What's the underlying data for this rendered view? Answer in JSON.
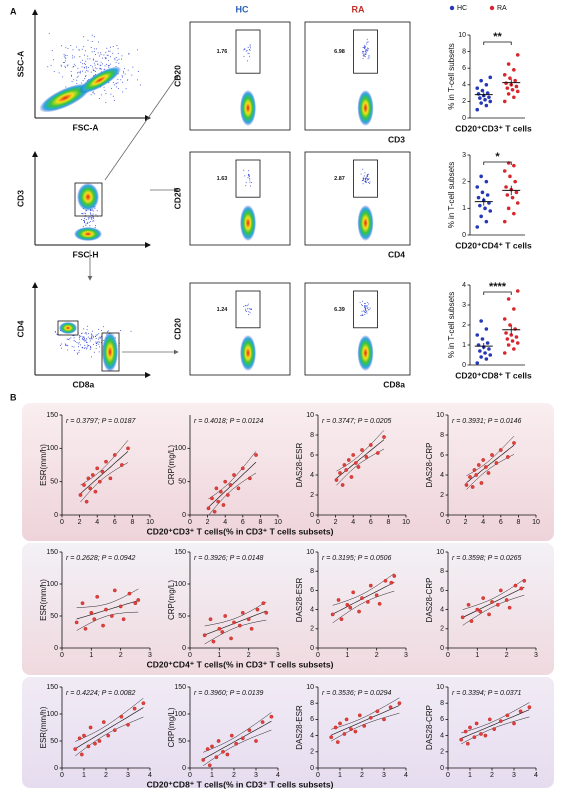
{
  "panel_a": "A",
  "panel_b": "B",
  "flow": {
    "hc": "HC",
    "ra": "RA",
    "gating": [
      {
        "x": "FSC-A",
        "y": "SSC-A"
      },
      {
        "x": "FSC-H",
        "y": "CD3"
      },
      {
        "x": "CD8a",
        "y": "CD4"
      }
    ],
    "rows": [
      {
        "y": "CD20",
        "x": "CD3",
        "hc": "1.76",
        "ra": "6.98"
      },
      {
        "y": "CD20",
        "x": "CD4",
        "hc": "1.63",
        "ra": "2.87"
      },
      {
        "y": "CD20",
        "x": "CD8a",
        "hc": "1.24",
        "ra": "6.39"
      }
    ]
  },
  "chart_data": [
    {
      "type": "dot",
      "ylabel": "% in T-cell subsets",
      "xlabel": "CD20⁺CD3⁺ T cells",
      "significance": "**",
      "ylim": [
        0,
        10
      ],
      "yticks": [
        0,
        2,
        4,
        6,
        8,
        10
      ],
      "series": [
        {
          "name": "HC",
          "color": "#2438b8",
          "values": [
            1.0,
            1.5,
            1.8,
            2.0,
            2.2,
            2.4,
            2.5,
            2.7,
            2.9,
            3.0,
            3.3,
            3.6,
            4.0,
            4.5,
            4.9
          ]
        },
        {
          "name": "RA",
          "color": "#d9262c",
          "values": [
            2.0,
            2.5,
            2.9,
            3.2,
            3.4,
            3.6,
            3.8,
            4.0,
            4.2,
            4.5,
            4.8,
            5.2,
            5.8,
            6.5,
            7.6
          ]
        }
      ]
    },
    {
      "type": "dot",
      "ylabel": "% in T-cell subsets",
      "xlabel": "CD20⁺CD4⁺ T cells",
      "significance": "*",
      "ylim": [
        0,
        3
      ],
      "yticks": [
        0,
        1,
        2,
        3
      ],
      "series": [
        {
          "name": "HC",
          "color": "#2438b8",
          "values": [
            0.3,
            0.5,
            0.7,
            0.9,
            1.0,
            1.1,
            1.2,
            1.3,
            1.4,
            1.5,
            1.6,
            1.8,
            2.0,
            2.2
          ]
        },
        {
          "name": "RA",
          "color": "#d9262c",
          "values": [
            0.5,
            0.8,
            1.0,
            1.2,
            1.4,
            1.5,
            1.6,
            1.7,
            1.8,
            2.0,
            2.2,
            2.4,
            2.6,
            2.7
          ]
        }
      ]
    },
    {
      "type": "dot",
      "ylabel": "% in T-cell subsets",
      "xlabel": "CD20⁺CD8⁺ T cells",
      "significance": "****",
      "ylim": [
        0,
        4
      ],
      "yticks": [
        0,
        1,
        2,
        3,
        4
      ],
      "series": [
        {
          "name": "HC",
          "color": "#2438b8",
          "values": [
            0.1,
            0.3,
            0.4,
            0.5,
            0.6,
            0.7,
            0.8,
            0.9,
            1.0,
            1.1,
            1.3,
            1.5,
            1.8,
            2.2
          ]
        },
        {
          "name": "RA",
          "color": "#d9262c",
          "values": [
            0.6,
            0.8,
            1.0,
            1.1,
            1.2,
            1.3,
            1.4,
            1.5,
            1.6,
            1.8,
            2.0,
            2.3,
            2.8,
            3.3,
            3.7
          ]
        }
      ]
    },
    {
      "type": "scatter",
      "xlabel": "CD20⁺CD3⁺ T cells(% in CD3⁺ T cells subsets)",
      "ylabel": "ESR(mm/h)",
      "annotation": "r = 0.3797; P = 0.0187",
      "color": "#e0403a",
      "xlim": [
        0,
        10
      ],
      "xticks": [
        0,
        2,
        4,
        6,
        8,
        10
      ],
      "ylim": [
        0,
        150
      ],
      "yticks": [
        0,
        50,
        100,
        150
      ],
      "x": [
        2.1,
        2.5,
        2.8,
        3.0,
        3.2,
        3.5,
        3.8,
        4.0,
        4.3,
        4.6,
        5.0,
        5.5,
        6.0,
        6.8,
        7.5
      ],
      "values": [
        30,
        45,
        20,
        55,
        40,
        60,
        35,
        70,
        50,
        65,
        80,
        55,
        90,
        75,
        100
      ]
    },
    {
      "type": "scatter",
      "ylabel": "CRP(mg/L)",
      "annotation": "r = 0.4018; P = 0.0124",
      "color": "#e0403a",
      "xlim": [
        0,
        10
      ],
      "xticks": [
        0,
        2,
        4,
        6,
        8,
        10
      ],
      "ylim": [
        0,
        150
      ],
      "yticks": [
        0,
        50,
        100
      ],
      "x": [
        2.1,
        2.5,
        2.8,
        3.0,
        3.2,
        3.5,
        3.8,
        4.0,
        4.3,
        4.6,
        5.0,
        5.5,
        6.0,
        6.8,
        7.5
      ],
      "values": [
        10,
        25,
        5,
        40,
        20,
        35,
        15,
        50,
        30,
        45,
        60,
        40,
        70,
        55,
        90
      ]
    },
    {
      "type": "scatter",
      "ylabel": "DAS28-ESR",
      "annotation": "r = 0.3747; P = 0.0205",
      "color": "#e0403a",
      "xlim": [
        0,
        10
      ],
      "xticks": [
        0,
        2,
        4,
        6,
        8,
        10
      ],
      "ylim": [
        0,
        10
      ],
      "yticks": [
        0,
        2,
        4,
        6,
        8,
        10
      ],
      "x": [
        2.1,
        2.5,
        2.8,
        3.0,
        3.2,
        3.5,
        3.8,
        4.0,
        4.3,
        4.6,
        5.0,
        5.5,
        6.0,
        6.8,
        7.5
      ],
      "values": [
        3.5,
        4.2,
        3.0,
        5.0,
        4.5,
        5.5,
        3.8,
        6.0,
        5.2,
        4.8,
        6.5,
        5.8,
        7.0,
        6.2,
        7.8
      ]
    },
    {
      "type": "scatter",
      "ylabel": "DAS28-CRP",
      "annotation": "r = 0.3931; P = 0.0146",
      "color": "#e0403a",
      "xlim": [
        0,
        10
      ],
      "xticks": [
        0,
        2,
        4,
        6,
        8,
        10
      ],
      "ylim": [
        0,
        10
      ],
      "yticks": [
        0,
        2,
        4,
        6,
        8,
        10
      ],
      "x": [
        2.1,
        2.5,
        2.8,
        3.0,
        3.2,
        3.5,
        3.8,
        4.0,
        4.3,
        4.6,
        5.0,
        5.5,
        6.0,
        6.8,
        7.5
      ],
      "values": [
        3.0,
        3.8,
        2.8,
        4.5,
        4.0,
        5.0,
        3.2,
        5.5,
        4.8,
        4.2,
        6.0,
        5.2,
        6.5,
        5.8,
        7.2
      ]
    },
    {
      "type": "scatter",
      "xlabel": "CD20⁺CD4⁺ T cells(% in CD3⁺ T cells subsets)",
      "ylabel": "ESR(mm/h)",
      "annotation": "r = 0.2628; P = 0.0942",
      "color": "#e0403a",
      "xlim": [
        0,
        3
      ],
      "xticks": [
        0,
        1,
        2,
        3
      ],
      "ylim": [
        0,
        150
      ],
      "yticks": [
        0,
        50,
        100,
        150
      ],
      "x": [
        0.5,
        0.7,
        0.8,
        1.0,
        1.1,
        1.2,
        1.4,
        1.5,
        1.7,
        1.8,
        2.0,
        2.1,
        2.3,
        2.5,
        2.6
      ],
      "values": [
        40,
        70,
        30,
        55,
        45,
        80,
        35,
        60,
        50,
        90,
        65,
        45,
        85,
        70,
        75
      ]
    },
    {
      "type": "scatter",
      "ylabel": "CRP(mg/L)",
      "annotation": "r = 0.3926; P = 0.0148",
      "color": "#e0403a",
      "xlim": [
        0,
        3
      ],
      "xticks": [
        0,
        1,
        2,
        3
      ],
      "ylim": [
        0,
        150
      ],
      "yticks": [
        0,
        50,
        100,
        150
      ],
      "x": [
        0.5,
        0.7,
        0.8,
        1.0,
        1.1,
        1.2,
        1.4,
        1.5,
        1.7,
        1.8,
        2.0,
        2.1,
        2.3,
        2.5,
        2.6
      ],
      "values": [
        20,
        45,
        10,
        30,
        25,
        50,
        15,
        40,
        35,
        55,
        45,
        30,
        60,
        70,
        55
      ]
    },
    {
      "type": "scatter",
      "ylabel": "DAS28-ESR",
      "annotation": "r = 0.3195; P = 0.0506",
      "color": "#e0403a",
      "xlim": [
        0,
        3
      ],
      "xticks": [
        0,
        1,
        2,
        3
      ],
      "ylim": [
        0,
        10
      ],
      "yticks": [
        0,
        2,
        4,
        6,
        8,
        10
      ],
      "x": [
        0.5,
        0.7,
        0.8,
        1.0,
        1.1,
        1.2,
        1.4,
        1.5,
        1.7,
        1.8,
        2.0,
        2.1,
        2.3,
        2.5,
        2.6
      ],
      "values": [
        3.5,
        5.0,
        3.0,
        4.5,
        4.2,
        5.8,
        3.8,
        5.2,
        4.8,
        6.5,
        5.5,
        4.6,
        7.0,
        6.8,
        7.5
      ]
    },
    {
      "type": "scatter",
      "ylabel": "DAS28-CRP",
      "annotation": "r = 0.3598; P = 0.0265",
      "color": "#e0403a",
      "xlim": [
        0,
        3
      ],
      "xticks": [
        0,
        1,
        2,
        3
      ],
      "ylim": [
        0,
        10
      ],
      "yticks": [
        0,
        2,
        4,
        6,
        8,
        10
      ],
      "x": [
        0.5,
        0.7,
        0.8,
        1.0,
        1.1,
        1.2,
        1.4,
        1.5,
        1.7,
        1.8,
        2.0,
        2.1,
        2.3,
        2.5,
        2.6
      ],
      "values": [
        3.2,
        4.5,
        2.8,
        4.0,
        3.8,
        5.2,
        3.5,
        4.8,
        4.5,
        6.0,
        5.0,
        4.2,
        6.5,
        6.2,
        7.0
      ]
    },
    {
      "type": "scatter",
      "xlabel": "CD20⁺CD8⁺ T cells(% in CD3⁺ T cells subsets)",
      "ylabel": "ESR(mm/h)",
      "annotation": "r = 0.4224; P = 0.0082",
      "color": "#e0403a",
      "xlim": [
        0,
        4
      ],
      "xticks": [
        0,
        1,
        2,
        3,
        4
      ],
      "ylim": [
        0,
        150
      ],
      "yticks": [
        0,
        50,
        100,
        150
      ],
      "x": [
        0.6,
        0.8,
        0.9,
        1.0,
        1.2,
        1.3,
        1.5,
        1.7,
        1.9,
        2.1,
        2.4,
        2.7,
        3.0,
        3.3,
        3.7
      ],
      "values": [
        35,
        55,
        25,
        60,
        40,
        75,
        45,
        50,
        85,
        60,
        70,
        95,
        80,
        110,
        120
      ]
    },
    {
      "type": "scatter",
      "ylabel": "CRP(mg/L)",
      "annotation": "r = 0.3960; P = 0.0139",
      "color": "#e0403a",
      "xlim": [
        0,
        4
      ],
      "xticks": [
        0,
        1,
        2,
        3,
        4
      ],
      "ylim": [
        0,
        150
      ],
      "yticks": [
        0,
        50,
        100,
        150
      ],
      "x": [
        0.6,
        0.8,
        0.9,
        1.0,
        1.2,
        1.3,
        1.5,
        1.7,
        1.9,
        2.1,
        2.4,
        2.7,
        3.0,
        3.3,
        3.7
      ],
      "values": [
        15,
        35,
        5,
        40,
        20,
        50,
        30,
        25,
        60,
        45,
        55,
        70,
        50,
        85,
        95
      ]
    },
    {
      "type": "scatter",
      "ylabel": "DAS28-ESR",
      "annotation": "r = 0.3536; P = 0.0294",
      "color": "#e0403a",
      "xlim": [
        0,
        4
      ],
      "xticks": [
        0,
        1,
        2,
        3,
        4
      ],
      "ylim": [
        0,
        10
      ],
      "yticks": [
        0,
        2,
        4,
        6,
        8,
        10
      ],
      "x": [
        0.6,
        0.8,
        0.9,
        1.0,
        1.2,
        1.3,
        1.5,
        1.7,
        1.9,
        2.1,
        2.4,
        2.7,
        3.0,
        3.3,
        3.7
      ],
      "values": [
        3.8,
        5.0,
        3.2,
        5.5,
        4.2,
        6.0,
        4.8,
        4.5,
        6.5,
        5.2,
        6.2,
        7.0,
        6.0,
        7.5,
        8.0
      ]
    },
    {
      "type": "scatter",
      "ylabel": "DAS28-CRP",
      "annotation": "r = 0.3394; P = 0.0371",
      "color": "#e0403a",
      "xlim": [
        0,
        4
      ],
      "xticks": [
        0,
        1,
        2,
        3,
        4
      ],
      "ylim": [
        0,
        10
      ],
      "yticks": [
        0,
        2,
        4,
        6,
        8,
        10
      ],
      "x": [
        0.6,
        0.8,
        0.9,
        1.0,
        1.2,
        1.3,
        1.5,
        1.7,
        1.9,
        2.1,
        2.4,
        2.7,
        3.0,
        3.3,
        3.7
      ],
      "values": [
        3.5,
        4.5,
        3.0,
        5.0,
        3.8,
        5.5,
        4.2,
        4.0,
        6.0,
        4.8,
        5.8,
        6.5,
        5.5,
        7.0,
        7.5
      ]
    }
  ]
}
